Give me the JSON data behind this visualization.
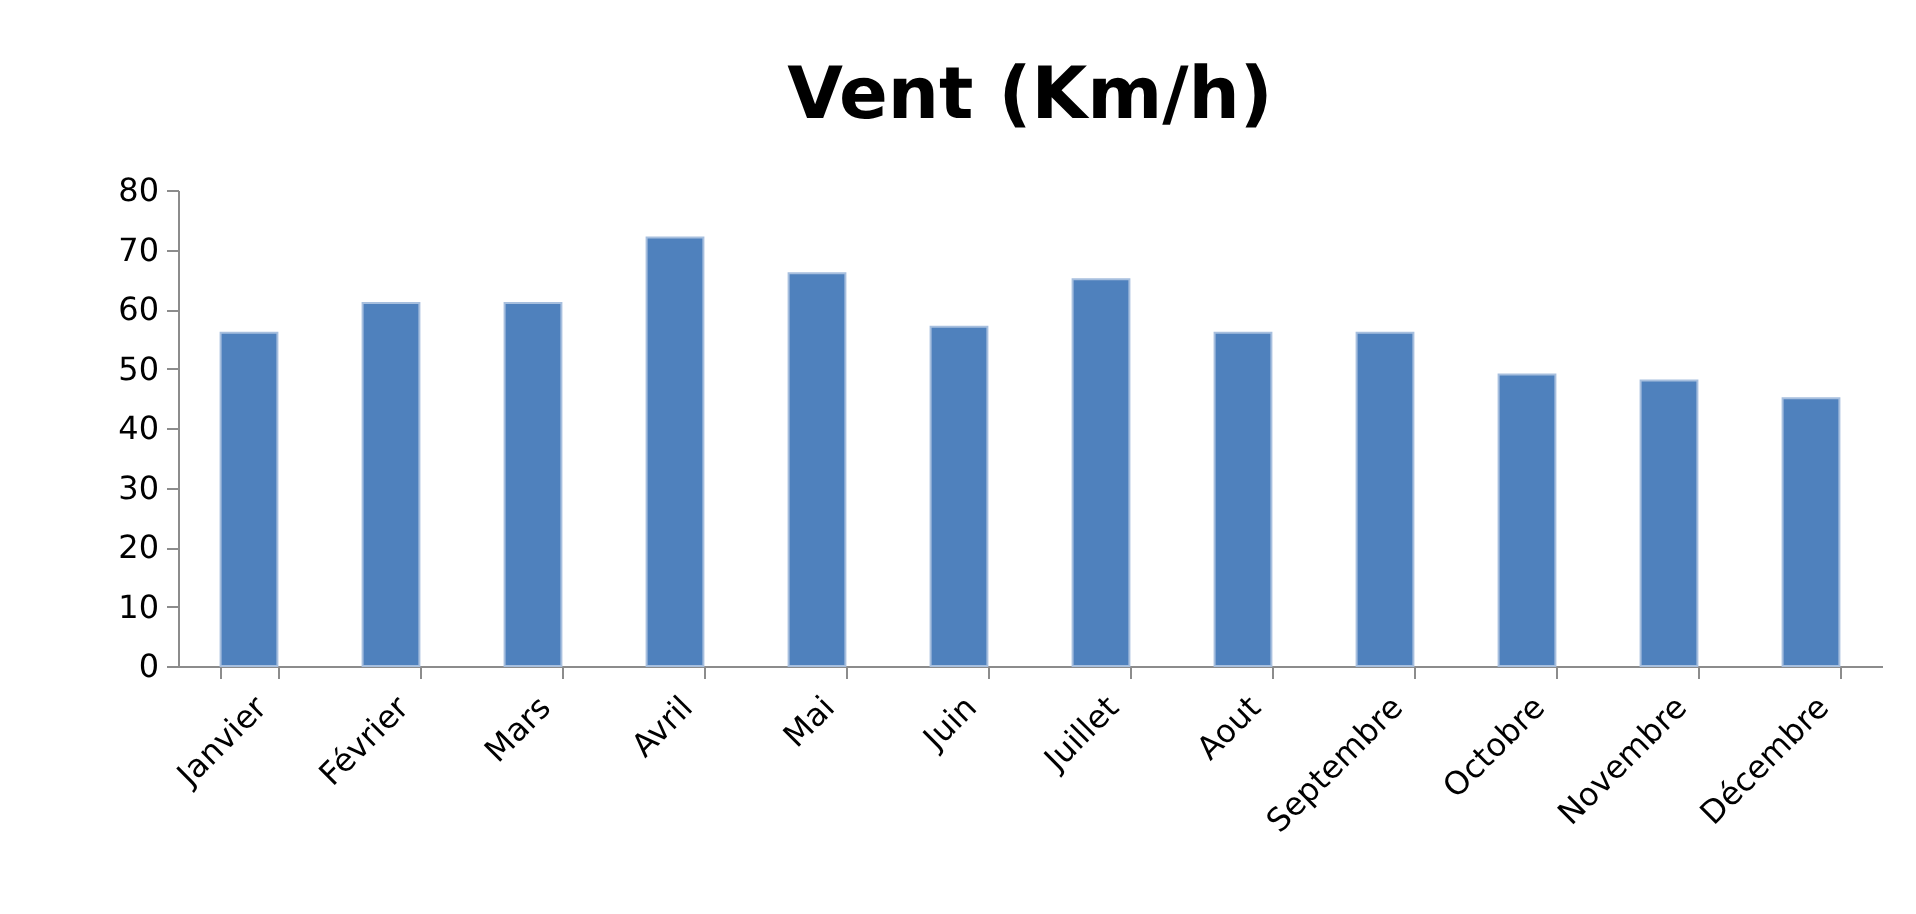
{
  "chart_data": {
    "type": "bar",
    "title": "Vent (Km/h)",
    "categories": [
      "Janvier",
      "Février",
      "Mars",
      "Avril",
      "Mai",
      "Juin",
      "Juillet",
      "Aout",
      "Septembre",
      "Octobre",
      "Novembre",
      "Décembre"
    ],
    "values": [
      56,
      61,
      61,
      72,
      66,
      57,
      65,
      56,
      56,
      49,
      48,
      45
    ],
    "color": "#4f81bd",
    "ylim": [
      0,
      80
    ],
    "yticks": [
      0,
      10,
      20,
      30,
      40,
      50,
      60,
      70,
      80
    ]
  }
}
